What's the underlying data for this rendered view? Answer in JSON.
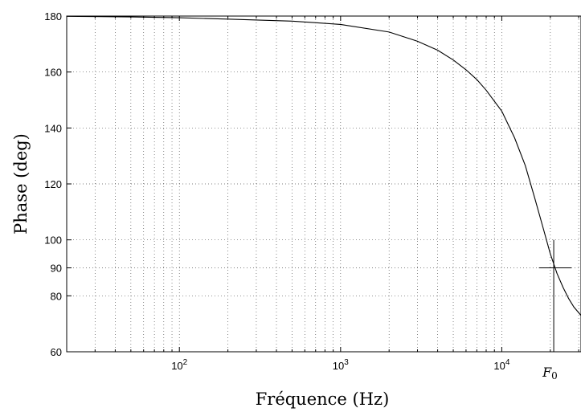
{
  "chart_data": {
    "type": "line",
    "x_scale": "log",
    "xlabel": "Fréquence (Hz)",
    "ylabel": "Phase (deg)",
    "xlim": [
      20,
      31000
    ],
    "ylim": [
      60,
      180
    ],
    "grid": true,
    "x_ticks": [
      {
        "value": 100,
        "base": "10",
        "exp": "2"
      },
      {
        "value": 1000,
        "base": "10",
        "exp": "3"
      },
      {
        "value": 10000,
        "base": "10",
        "exp": "4"
      }
    ],
    "y_ticks": [
      60,
      80,
      90,
      100,
      120,
      140,
      160,
      180
    ],
    "series": [
      {
        "x": [
          20,
          50,
          100,
          200,
          500,
          1000,
          2000,
          3000,
          4000,
          5000,
          6000,
          7000,
          8000,
          10000,
          12000,
          14000,
          16000,
          18000,
          20000,
          22000,
          24000,
          26000,
          28000,
          31000
        ],
        "values": [
          179.9,
          179.7,
          179.4,
          178.9,
          178.2,
          177.0,
          174.3,
          171.0,
          167.8,
          164.3,
          160.8,
          157.3,
          153.5,
          146.0,
          136.5,
          126.5,
          115.0,
          104.5,
          95.0,
          88.0,
          83.0,
          79.0,
          76.0,
          73.0
        ]
      }
    ],
    "annotations": [
      {
        "text": "F0",
        "sub": "0",
        "main": "F",
        "x": 21000,
        "y": 90,
        "crosshair_y_range": [
          60,
          100
        ],
        "crosshair_x_range": [
          17000,
          27000
        ]
      }
    ]
  }
}
